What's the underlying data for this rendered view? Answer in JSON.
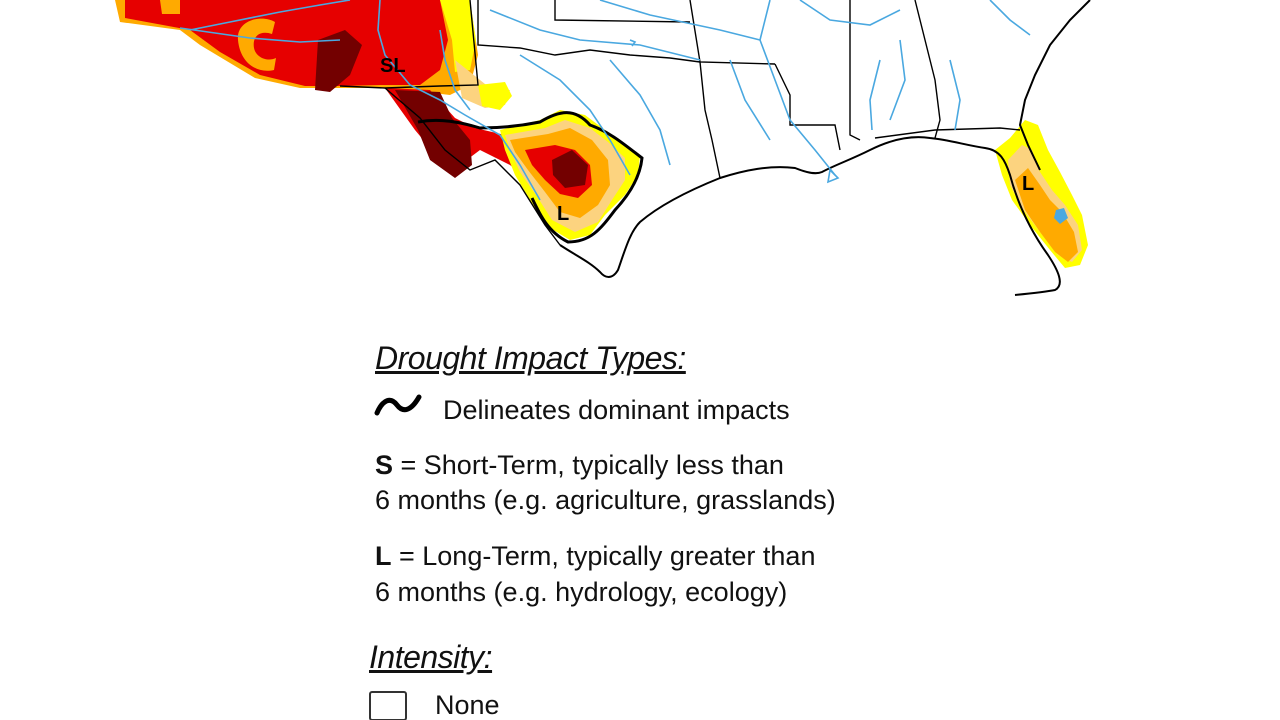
{
  "map": {
    "labels": {
      "southwest": "SL",
      "texas": "L",
      "florida": "L"
    },
    "colors": {
      "d0_abnormally_dry": "#ffff00",
      "d1_moderate": "#fcd37f",
      "d2_severe": "#ffaa00",
      "d3_extreme": "#e60000",
      "d4_exceptional": "#730000",
      "water": "#4aa8e0",
      "boundary": "#000000"
    }
  },
  "legend": {
    "impact_heading": "Drought Impact Types:",
    "delineates_text": "Delineates dominant impacts",
    "short_term_key": "S",
    "short_term_line1": " = Short-Term, typically less than",
    "short_term_line2": "6 months (e.g. agriculture, grasslands)",
    "long_term_key": "L",
    "long_term_line1": " = Long-Term, typically greater than",
    "long_term_line2": "6 months (e.g. hydrology, ecology)",
    "intensity_heading": "Intensity:",
    "intensity_items": [
      "None"
    ]
  }
}
